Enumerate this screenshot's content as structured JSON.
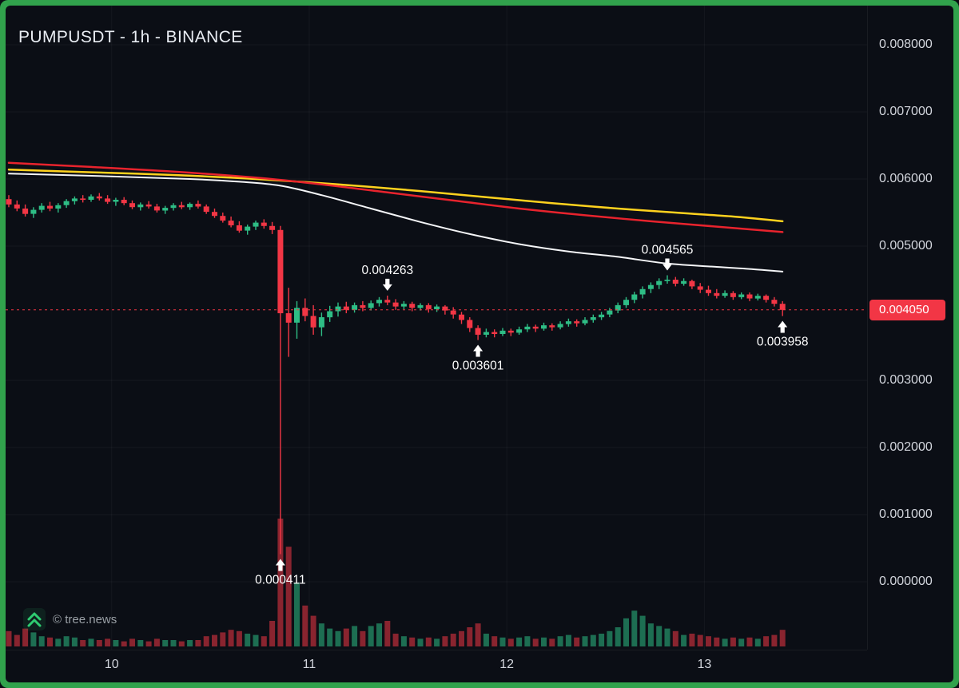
{
  "header": {
    "title": "PUMPUSDT - 1h - BINANCE"
  },
  "watermark": {
    "label": "© tree.news"
  },
  "colors": {
    "frame_green": "#31a24c",
    "background": "#0b0e15",
    "candle_up": "#2ebd85",
    "candle_down": "#f23645",
    "volume_up": "#2ebd85",
    "volume_down": "#f23645",
    "ma_red": "#e8232d",
    "ma_yellow": "#ffd21e",
    "ma_white": "#f4f5f7",
    "price_line": "#f23645",
    "price_label_bg": "#f23645",
    "price_label_text": "#ffffff",
    "axis_text": "#d2d5dc",
    "annotation": "#ffffff",
    "watermark_text": "#9aa0a6",
    "logo_green": "#2ecc71",
    "grid": "rgba(255,255,255,0.045)"
  },
  "chart_data": {
    "type": "candlestick",
    "title": "PUMPUSDT - 1h - BINANCE",
    "symbol": "PUMPUSDT",
    "interval": "1h",
    "exchange": "BINANCE",
    "price_axis": {
      "side": "right",
      "ticks": [
        {
          "label": "0.008000",
          "value": 0.008
        },
        {
          "label": "0.007000",
          "value": 0.007
        },
        {
          "label": "0.006000",
          "value": 0.006
        },
        {
          "label": "0.005000",
          "value": 0.005
        },
        {
          "label": "0.003000",
          "value": 0.003
        },
        {
          "label": "0.002000",
          "value": 0.002
        },
        {
          "label": "0.001000",
          "value": 0.001
        },
        {
          "label": "0.000000",
          "value": 0.0
        }
      ]
    },
    "time_axis": {
      "labels": [
        {
          "label": "10",
          "index": 12.5
        },
        {
          "label": "11",
          "index": 36.5
        },
        {
          "label": "12",
          "index": 60.5
        },
        {
          "label": "13",
          "index": 84.5
        }
      ]
    },
    "current_price": {
      "value": 0.00405,
      "label": "0.004050"
    },
    "annotations": [
      {
        "index": 46,
        "price": 0.004263,
        "label": "0.004263",
        "direction": "down"
      },
      {
        "index": 80,
        "price": 0.004565,
        "label": "0.004565",
        "direction": "down"
      },
      {
        "index": 57,
        "price": 0.003601,
        "label": "0.003601",
        "direction": "up"
      },
      {
        "index": 94,
        "price": 0.003958,
        "label": "0.003958",
        "direction": "up"
      },
      {
        "index": 33,
        "price": 0.000411,
        "label": "0.000411",
        "direction": "up"
      }
    ],
    "moving_averages": [
      {
        "name": "ma-white",
        "color_key": "ma_white",
        "width": 2,
        "points": [
          [
            0,
            0.00608
          ],
          [
            12,
            0.00604
          ],
          [
            22,
            0.006
          ],
          [
            28,
            0.00596
          ],
          [
            33,
            0.0059
          ],
          [
            38,
            0.00576
          ],
          [
            44,
            0.00556
          ],
          [
            50,
            0.00536
          ],
          [
            56,
            0.00518
          ],
          [
            62,
            0.00503
          ],
          [
            68,
            0.00492
          ],
          [
            74,
            0.00484
          ],
          [
            80,
            0.00474
          ],
          [
            86,
            0.00469
          ],
          [
            90,
            0.00466
          ],
          [
            94,
            0.00462
          ]
        ]
      },
      {
        "name": "ma-yellow",
        "color_key": "ma_yellow",
        "width": 2.5,
        "points": [
          [
            0,
            0.00614
          ],
          [
            10,
            0.0061
          ],
          [
            20,
            0.00606
          ],
          [
            30,
            0.006
          ],
          [
            40,
            0.00592
          ],
          [
            50,
            0.00582
          ],
          [
            58,
            0.00573
          ],
          [
            66,
            0.00564
          ],
          [
            74,
            0.00556
          ],
          [
            82,
            0.00549
          ],
          [
            88,
            0.00544
          ],
          [
            94,
            0.00537
          ]
        ]
      },
      {
        "name": "ma-red",
        "color_key": "ma_red",
        "width": 2.5,
        "points": [
          [
            0,
            0.00624
          ],
          [
            10,
            0.00618
          ],
          [
            20,
            0.00611
          ],
          [
            30,
            0.00602
          ],
          [
            38,
            0.00592
          ],
          [
            46,
            0.0058
          ],
          [
            54,
            0.00568
          ],
          [
            62,
            0.00556
          ],
          [
            70,
            0.00546
          ],
          [
            78,
            0.00537
          ],
          [
            86,
            0.00529
          ],
          [
            94,
            0.00521
          ]
        ]
      }
    ],
    "candles": [
      [
        0.0057,
        0.00576,
        0.00558,
        0.00562,
        0.12
      ],
      [
        0.00562,
        0.00568,
        0.00552,
        0.00556,
        0.09
      ],
      [
        0.00556,
        0.00562,
        0.00544,
        0.00548,
        0.14
      ],
      [
        0.00548,
        0.00558,
        0.00542,
        0.00554,
        0.11
      ],
      [
        0.00554,
        0.00564,
        0.0055,
        0.0056,
        0.08
      ],
      [
        0.0056,
        0.00566,
        0.00552,
        0.00556,
        0.07
      ],
      [
        0.00556,
        0.00564,
        0.0055,
        0.00561,
        0.06
      ],
      [
        0.00561,
        0.0057,
        0.00557,
        0.00567,
        0.08
      ],
      [
        0.00567,
        0.00574,
        0.00562,
        0.00571,
        0.07
      ],
      [
        0.00571,
        0.00576,
        0.00565,
        0.00569,
        0.05
      ],
      [
        0.00569,
        0.00577,
        0.00566,
        0.00574,
        0.06
      ],
      [
        0.00574,
        0.00579,
        0.00568,
        0.00571,
        0.05
      ],
      [
        0.00571,
        0.00576,
        0.00563,
        0.00566,
        0.06
      ],
      [
        0.00566,
        0.00572,
        0.0056,
        0.00569,
        0.05
      ],
      [
        0.00569,
        0.00573,
        0.00561,
        0.00564,
        0.04
      ],
      [
        0.00564,
        0.00568,
        0.00555,
        0.00558,
        0.06
      ],
      [
        0.00558,
        0.00565,
        0.00553,
        0.00562,
        0.05
      ],
      [
        0.00562,
        0.00567,
        0.00556,
        0.00559,
        0.04
      ],
      [
        0.00559,
        0.00563,
        0.0055,
        0.00553,
        0.06
      ],
      [
        0.00553,
        0.0056,
        0.00548,
        0.00557,
        0.05
      ],
      [
        0.00557,
        0.00564,
        0.00553,
        0.00561,
        0.05
      ],
      [
        0.00561,
        0.00566,
        0.00555,
        0.00558,
        0.04
      ],
      [
        0.00558,
        0.00565,
        0.00554,
        0.00563,
        0.05
      ],
      [
        0.00563,
        0.00568,
        0.00556,
        0.00559,
        0.05
      ],
      [
        0.00559,
        0.00562,
        0.00548,
        0.00551,
        0.08
      ],
      [
        0.00551,
        0.00556,
        0.00542,
        0.00545,
        0.09
      ],
      [
        0.00545,
        0.0055,
        0.00535,
        0.00538,
        0.11
      ],
      [
        0.00538,
        0.00544,
        0.00528,
        0.00531,
        0.13
      ],
      [
        0.00531,
        0.00537,
        0.0052,
        0.00523,
        0.12
      ],
      [
        0.00523,
        0.00532,
        0.00517,
        0.00529,
        0.1
      ],
      [
        0.00529,
        0.00538,
        0.00524,
        0.00535,
        0.09
      ],
      [
        0.00535,
        0.0054,
        0.00526,
        0.0053,
        0.08
      ],
      [
        0.0053,
        0.00536,
        0.00518,
        0.00524,
        0.2
      ],
      [
        0.00524,
        0.0053,
        0.000411,
        0.004,
        1.0
      ],
      [
        0.004,
        0.00438,
        0.00335,
        0.00386,
        0.78
      ],
      [
        0.00386,
        0.00418,
        0.00362,
        0.00408,
        0.5
      ],
      [
        0.00408,
        0.00422,
        0.00388,
        0.00396,
        0.32
      ],
      [
        0.00396,
        0.00412,
        0.00368,
        0.00379,
        0.24
      ],
      [
        0.00379,
        0.00401,
        0.00366,
        0.00394,
        0.18
      ],
      [
        0.00394,
        0.00411,
        0.00387,
        0.00403,
        0.14
      ],
      [
        0.00403,
        0.00416,
        0.00395,
        0.0041,
        0.12
      ],
      [
        0.0041,
        0.00417,
        0.004,
        0.00405,
        0.14
      ],
      [
        0.00405,
        0.00416,
        0.00401,
        0.00412,
        0.16
      ],
      [
        0.00412,
        0.00418,
        0.00403,
        0.00408,
        0.12
      ],
      [
        0.00408,
        0.00419,
        0.00404,
        0.00415,
        0.16
      ],
      [
        0.00415,
        0.00424,
        0.0041,
        0.0042,
        0.18
      ],
      [
        0.0042,
        0.004263,
        0.00412,
        0.00416,
        0.2
      ],
      [
        0.00416,
        0.00421,
        0.00405,
        0.0041,
        0.1
      ],
      [
        0.0041,
        0.00418,
        0.00406,
        0.00414,
        0.08
      ],
      [
        0.00414,
        0.00417,
        0.00403,
        0.00408,
        0.07
      ],
      [
        0.00408,
        0.00415,
        0.00404,
        0.00412,
        0.06
      ],
      [
        0.00412,
        0.00415,
        0.00401,
        0.00406,
        0.07
      ],
      [
        0.00406,
        0.00413,
        0.00402,
        0.0041,
        0.06
      ],
      [
        0.0041,
        0.00412,
        0.00398,
        0.00404,
        0.08
      ],
      [
        0.00404,
        0.00409,
        0.00392,
        0.00398,
        0.1
      ],
      [
        0.00398,
        0.00402,
        0.00384,
        0.0039,
        0.12
      ],
      [
        0.0039,
        0.00394,
        0.00372,
        0.00378,
        0.15
      ],
      [
        0.00378,
        0.00382,
        0.003601,
        0.00368,
        0.18
      ],
      [
        0.00368,
        0.00377,
        0.00364,
        0.00372,
        0.1
      ],
      [
        0.00372,
        0.00376,
        0.00364,
        0.00369,
        0.08
      ],
      [
        0.00369,
        0.00378,
        0.00366,
        0.00374,
        0.07
      ],
      [
        0.00374,
        0.00377,
        0.00366,
        0.00371,
        0.06
      ],
      [
        0.00371,
        0.0038,
        0.00368,
        0.00376,
        0.07
      ],
      [
        0.00376,
        0.00384,
        0.00372,
        0.0038,
        0.08
      ],
      [
        0.0038,
        0.00383,
        0.00372,
        0.00377,
        0.06
      ],
      [
        0.00377,
        0.00386,
        0.00374,
        0.00382,
        0.07
      ],
      [
        0.00382,
        0.00385,
        0.00374,
        0.00379,
        0.06
      ],
      [
        0.00379,
        0.00388,
        0.00376,
        0.00384,
        0.08
      ],
      [
        0.00384,
        0.00392,
        0.0038,
        0.00388,
        0.09
      ],
      [
        0.00388,
        0.00391,
        0.0038,
        0.00385,
        0.07
      ],
      [
        0.00385,
        0.00394,
        0.00382,
        0.0039,
        0.08
      ],
      [
        0.0039,
        0.00398,
        0.00386,
        0.00394,
        0.09
      ],
      [
        0.00394,
        0.00402,
        0.0039,
        0.00398,
        0.1
      ],
      [
        0.00398,
        0.00408,
        0.00394,
        0.00404,
        0.12
      ],
      [
        0.00404,
        0.00416,
        0.004,
        0.00412,
        0.15
      ],
      [
        0.00412,
        0.00424,
        0.00408,
        0.0042,
        0.22
      ],
      [
        0.0042,
        0.00432,
        0.00415,
        0.00428,
        0.28
      ],
      [
        0.00428,
        0.0044,
        0.00422,
        0.00436,
        0.24
      ],
      [
        0.00436,
        0.00446,
        0.0043,
        0.00442,
        0.18
      ],
      [
        0.00442,
        0.00452,
        0.00436,
        0.00448,
        0.16
      ],
      [
        0.00448,
        0.004565,
        0.00444,
        0.0045,
        0.14
      ],
      [
        0.0045,
        0.00454,
        0.0044,
        0.00444,
        0.12
      ],
      [
        0.00444,
        0.00452,
        0.00441,
        0.00448,
        0.09
      ],
      [
        0.00448,
        0.0045,
        0.00436,
        0.0044,
        0.1
      ],
      [
        0.0044,
        0.00445,
        0.0043,
        0.00435,
        0.09
      ],
      [
        0.00435,
        0.00441,
        0.00426,
        0.0043,
        0.08
      ],
      [
        0.0043,
        0.00436,
        0.00422,
        0.00426,
        0.07
      ],
      [
        0.00426,
        0.00434,
        0.00423,
        0.0043,
        0.06
      ],
      [
        0.0043,
        0.00433,
        0.0042,
        0.00424,
        0.07
      ],
      [
        0.00424,
        0.00431,
        0.00421,
        0.00428,
        0.06
      ],
      [
        0.00428,
        0.00431,
        0.00418,
        0.00422,
        0.07
      ],
      [
        0.00422,
        0.00429,
        0.00419,
        0.00426,
        0.06
      ],
      [
        0.00426,
        0.00428,
        0.00416,
        0.0042,
        0.08
      ],
      [
        0.0042,
        0.00424,
        0.0041,
        0.00414,
        0.09
      ],
      [
        0.00414,
        0.00418,
        0.003958,
        0.00405,
        0.13
      ]
    ]
  }
}
